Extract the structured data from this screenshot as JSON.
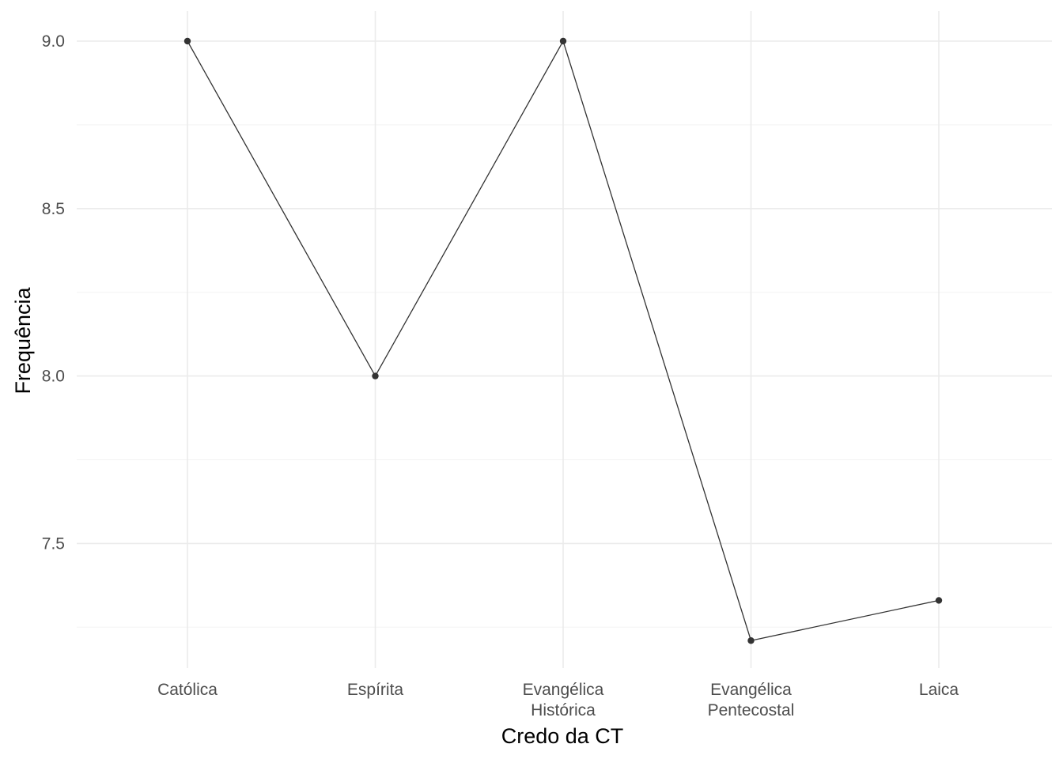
{
  "chart_data": {
    "type": "line",
    "categories": [
      [
        "Católica"
      ],
      [
        "Espírita"
      ],
      [
        "Evangélica",
        "Histórica"
      ],
      [
        "Evangélica",
        "Pentecostal"
      ],
      [
        "Laica"
      ]
    ],
    "values": [
      9.0,
      8.0,
      9.0,
      7.21,
      7.33
    ],
    "xlabel": "Credo da CT",
    "ylabel": "Frequência",
    "ylim": [
      7.13,
      9.09
    ],
    "yticks": [
      7.5,
      8.0,
      8.5,
      9.0
    ],
    "ytick_labels": [
      "7.5",
      "8.0",
      "8.5",
      "9.0"
    ],
    "grid": true,
    "line_color": "#333333",
    "point_color": "#333333"
  }
}
